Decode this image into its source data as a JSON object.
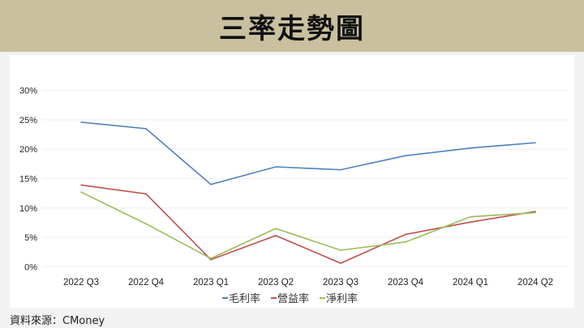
{
  "title": "三率走勢圖",
  "source": "資料來源：CMoney",
  "chart_data": {
    "type": "line",
    "categories": [
      "2022 Q3",
      "2022 Q4",
      "2023 Q1",
      "2023 Q2",
      "2023 Q3",
      "2023 Q4",
      "2024 Q1",
      "2024 Q2"
    ],
    "yticks": [
      "0%",
      "5%",
      "10%",
      "15%",
      "20%",
      "25%",
      "30%"
    ],
    "ylim": [
      0,
      30
    ],
    "grid": true,
    "legend_position": "bottom",
    "series": [
      {
        "name": "毛利率",
        "color": "#4f81bd",
        "values": [
          24.6,
          23.5,
          14.0,
          17.0,
          16.5,
          18.9,
          20.2,
          21.1
        ]
      },
      {
        "name": "營益率",
        "color": "#c0504d",
        "values": [
          13.9,
          12.4,
          1.2,
          5.3,
          0.6,
          5.5,
          7.6,
          9.4
        ]
      },
      {
        "name": "淨利率",
        "color": "#9bbb59",
        "values": [
          12.7,
          7.3,
          1.4,
          6.5,
          2.8,
          4.2,
          8.5,
          9.2
        ]
      }
    ]
  }
}
